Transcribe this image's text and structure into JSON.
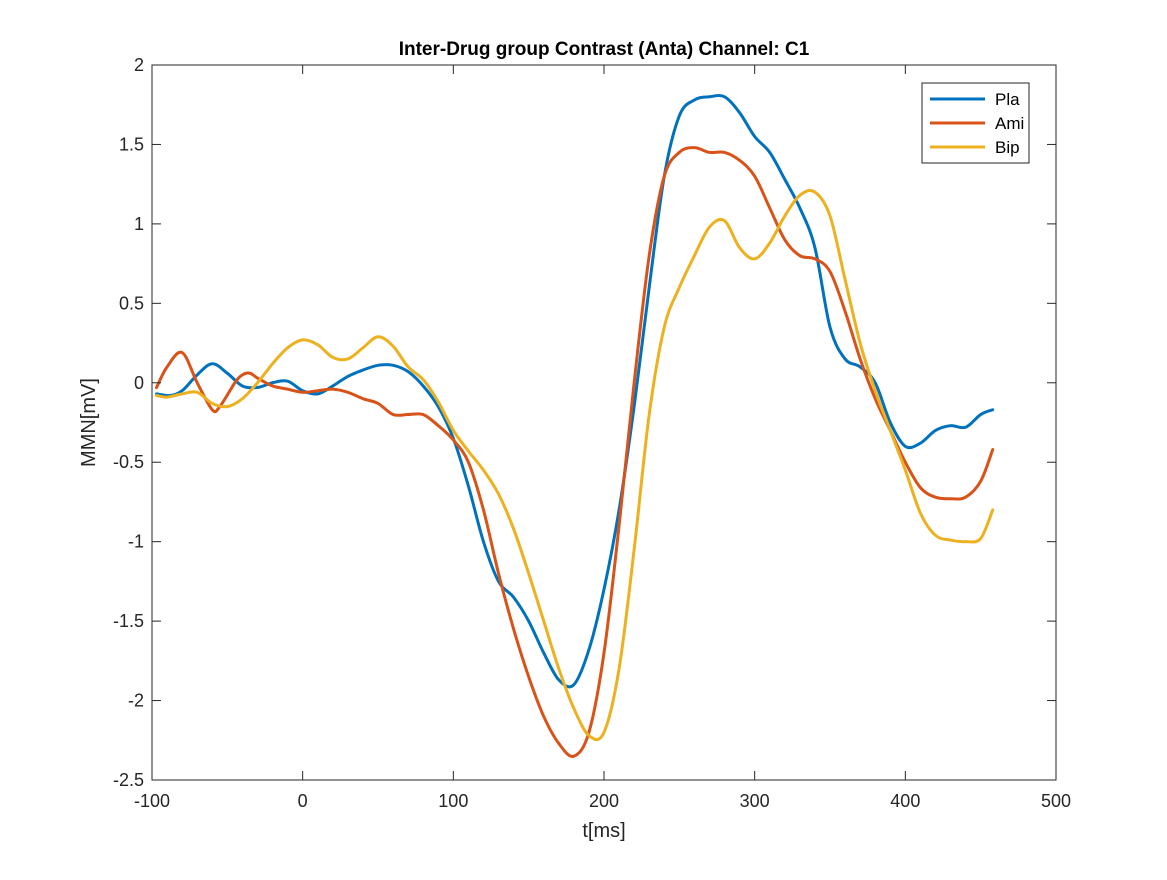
{
  "chart_data": {
    "type": "line",
    "title": "Inter-Drug group Contrast (Anta) Channel: C1",
    "xlabel": "t[ms]",
    "ylabel": "MMN[mV]",
    "xlim": [
      -100,
      500
    ],
    "ylim": [
      -2.5,
      2
    ],
    "xticks": [
      -100,
      0,
      100,
      200,
      300,
      400,
      500
    ],
    "yticks": [
      -2.5,
      -2,
      -1.5,
      -1,
      -0.5,
      0,
      0.5,
      1,
      1.5,
      2
    ],
    "xtick_labels": [
      "-100",
      "0",
      "100",
      "200",
      "300",
      "400",
      "500"
    ],
    "ytick_labels": [
      "-2.5",
      "-2",
      "-1.5",
      "-1",
      "-0.5",
      "0",
      "0.5",
      "1",
      "1.5",
      "2"
    ],
    "grid": false,
    "legend_position": "top-right",
    "series": [
      {
        "name": "Pla",
        "color": "#0072BD",
        "x": [
          -97,
          -88,
          -80,
          -70,
          -60,
          -50,
          -40,
          -30,
          -20,
          -10,
          0,
          10,
          20,
          30,
          40,
          50,
          60,
          70,
          80,
          90,
          100,
          110,
          120,
          130,
          140,
          150,
          160,
          170,
          180,
          190,
          200,
          210,
          220,
          230,
          240,
          250,
          260,
          270,
          280,
          290,
          300,
          310,
          320,
          330,
          340,
          350,
          360,
          370,
          380,
          390,
          400,
          410,
          420,
          430,
          440,
          450,
          458
        ],
        "y": [
          -0.07,
          -0.08,
          -0.05,
          0.05,
          0.12,
          0.06,
          -0.02,
          -0.03,
          0.0,
          0.01,
          -0.05,
          -0.07,
          -0.02,
          0.04,
          0.08,
          0.11,
          0.11,
          0.07,
          -0.02,
          -0.15,
          -0.35,
          -0.65,
          -1.0,
          -1.25,
          -1.35,
          -1.5,
          -1.7,
          -1.87,
          -1.9,
          -1.68,
          -1.3,
          -0.8,
          -0.15,
          0.6,
          1.3,
          1.68,
          1.78,
          1.8,
          1.8,
          1.7,
          1.55,
          1.45,
          1.28,
          1.1,
          0.85,
          0.35,
          0.15,
          0.1,
          0.0,
          -0.25,
          -0.4,
          -0.38,
          -0.3,
          -0.27,
          -0.28,
          -0.2,
          -0.17
        ]
      },
      {
        "name": "Ami",
        "color": "#D95319",
        "x": [
          -97,
          -90,
          -80,
          -70,
          -60,
          -55,
          -45,
          -40,
          -35,
          -30,
          -20,
          -10,
          0,
          10,
          20,
          30,
          40,
          50,
          60,
          70,
          80,
          90,
          100,
          110,
          120,
          130,
          140,
          150,
          160,
          170,
          180,
          190,
          200,
          210,
          220,
          230,
          240,
          250,
          260,
          270,
          280,
          290,
          300,
          310,
          320,
          330,
          340,
          350,
          360,
          370,
          380,
          390,
          400,
          410,
          420,
          430,
          440,
          450,
          458
        ],
        "y": [
          -0.03,
          0.1,
          0.19,
          0.0,
          -0.17,
          -0.15,
          0.0,
          0.05,
          0.06,
          0.03,
          -0.02,
          -0.04,
          -0.06,
          -0.05,
          -0.04,
          -0.06,
          -0.1,
          -0.13,
          -0.2,
          -0.2,
          -0.2,
          -0.27,
          -0.36,
          -0.5,
          -0.8,
          -1.2,
          -1.55,
          -1.85,
          -2.1,
          -2.27,
          -2.35,
          -2.2,
          -1.7,
          -0.9,
          0.0,
          0.8,
          1.3,
          1.45,
          1.48,
          1.45,
          1.45,
          1.4,
          1.3,
          1.1,
          0.9,
          0.8,
          0.78,
          0.7,
          0.45,
          0.15,
          -0.1,
          -0.3,
          -0.5,
          -0.66,
          -0.72,
          -0.73,
          -0.72,
          -0.62,
          -0.42
        ]
      },
      {
        "name": "Bip",
        "color": "#EDB120",
        "x": [
          -97,
          -90,
          -80,
          -70,
          -60,
          -50,
          -40,
          -30,
          -20,
          -10,
          0,
          10,
          20,
          30,
          40,
          50,
          60,
          70,
          80,
          90,
          100,
          110,
          120,
          130,
          140,
          150,
          160,
          170,
          180,
          190,
          200,
          210,
          220,
          230,
          240,
          250,
          260,
          270,
          280,
          290,
          300,
          310,
          320,
          330,
          340,
          350,
          360,
          370,
          380,
          390,
          400,
          410,
          420,
          430,
          440,
          450,
          458
        ],
        "y": [
          -0.08,
          -0.09,
          -0.07,
          -0.06,
          -0.13,
          -0.15,
          -0.1,
          0.0,
          0.12,
          0.22,
          0.27,
          0.24,
          0.16,
          0.15,
          0.22,
          0.29,
          0.23,
          0.1,
          0.02,
          -0.12,
          -0.3,
          -0.43,
          -0.55,
          -0.7,
          -0.92,
          -1.2,
          -1.5,
          -1.8,
          -2.05,
          -2.22,
          -2.2,
          -1.8,
          -1.05,
          -0.2,
          0.35,
          0.6,
          0.8,
          0.98,
          1.02,
          0.85,
          0.78,
          0.88,
          1.05,
          1.18,
          1.2,
          1.05,
          0.65,
          0.25,
          -0.05,
          -0.3,
          -0.55,
          -0.82,
          -0.96,
          -0.99,
          -1.0,
          -0.98,
          -0.8
        ]
      }
    ]
  }
}
